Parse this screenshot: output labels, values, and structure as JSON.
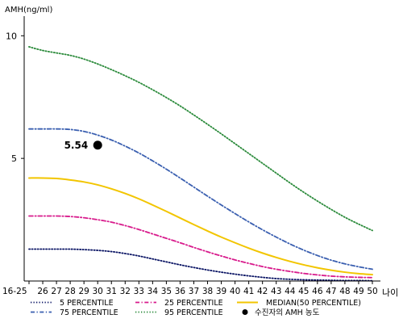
{
  "chart_data": {
    "type": "line",
    "ylabel": "AMH(ng/ml)",
    "xlabel": "나이",
    "ylim": [
      0,
      10.8
    ],
    "yticks": [
      5,
      10
    ],
    "categories": [
      "16-25",
      "26",
      "27",
      "28",
      "29",
      "30",
      "31",
      "32",
      "33",
      "34",
      "35",
      "36",
      "37",
      "38",
      "39",
      "40",
      "41",
      "42",
      "43",
      "44",
      "45",
      "46",
      "47",
      "48",
      "49",
      "50"
    ],
    "series": [
      {
        "name": "5 PERCENTILE",
        "color": "#0a1464",
        "dash": "dotted",
        "values": [
          1.3,
          1.3,
          1.3,
          1.3,
          1.28,
          1.25,
          1.2,
          1.12,
          1.02,
          0.9,
          0.78,
          0.66,
          0.55,
          0.45,
          0.36,
          0.28,
          0.21,
          0.15,
          0.1,
          0.07,
          0.05,
          0.04,
          0.03,
          0.02,
          0.02,
          0.01
        ]
      },
      {
        "name": "25 PERCENTILE",
        "color": "#d81b8c",
        "dash": "dashdot",
        "values": [
          2.65,
          2.65,
          2.65,
          2.63,
          2.58,
          2.5,
          2.4,
          2.26,
          2.1,
          1.92,
          1.74,
          1.56,
          1.37,
          1.19,
          1.02,
          0.86,
          0.72,
          0.59,
          0.48,
          0.39,
          0.31,
          0.25,
          0.2,
          0.17,
          0.15,
          0.14
        ]
      },
      {
        "name": "MEDIAN(50 PERCENTILE)",
        "color": "#f2c500",
        "dash": "solid",
        "values": [
          4.2,
          4.2,
          4.18,
          4.12,
          4.04,
          3.92,
          3.76,
          3.57,
          3.35,
          3.1,
          2.84,
          2.57,
          2.3,
          2.04,
          1.79,
          1.56,
          1.34,
          1.14,
          0.96,
          0.8,
          0.66,
          0.54,
          0.44,
          0.36,
          0.3,
          0.26
        ]
      },
      {
        "name": "75 PERCENTILE",
        "color": "#3a5fb0",
        "dash": "dashdot",
        "values": [
          6.2,
          6.2,
          6.2,
          6.18,
          6.1,
          5.95,
          5.75,
          5.5,
          5.22,
          4.9,
          4.56,
          4.2,
          3.83,
          3.46,
          3.1,
          2.75,
          2.41,
          2.09,
          1.79,
          1.51,
          1.26,
          1.04,
          0.85,
          0.7,
          0.58,
          0.48
        ]
      },
      {
        "name": "95 PERCENTILE",
        "color": "#2a8a3a",
        "dash": "dotted",
        "values": [
          9.55,
          9.4,
          9.3,
          9.2,
          9.05,
          8.85,
          8.62,
          8.37,
          8.1,
          7.8,
          7.48,
          7.14,
          6.77,
          6.39,
          6.0,
          5.6,
          5.2,
          4.8,
          4.4,
          4.0,
          3.62,
          3.26,
          2.92,
          2.6,
          2.32,
          2.06
        ]
      }
    ],
    "point": {
      "name": "수진자의 AMH 농도",
      "x": "30",
      "y": 5.54,
      "label": "5.54",
      "color": "#000000"
    },
    "legend_placement": "bottom",
    "legend_items": [
      {
        "label": "5 PERCENTILE",
        "series": 0
      },
      {
        "label": "25 PERCENTILE",
        "series": 1
      },
      {
        "label": "MEDIAN(50 PERCENTILE)",
        "series": 2
      },
      {
        "label": "75 PERCENTILE",
        "series": 3
      },
      {
        "label": "95 PERCENTILE",
        "series": 4
      },
      {
        "label": "수진자의 AMH 농도",
        "point": true
      }
    ]
  }
}
